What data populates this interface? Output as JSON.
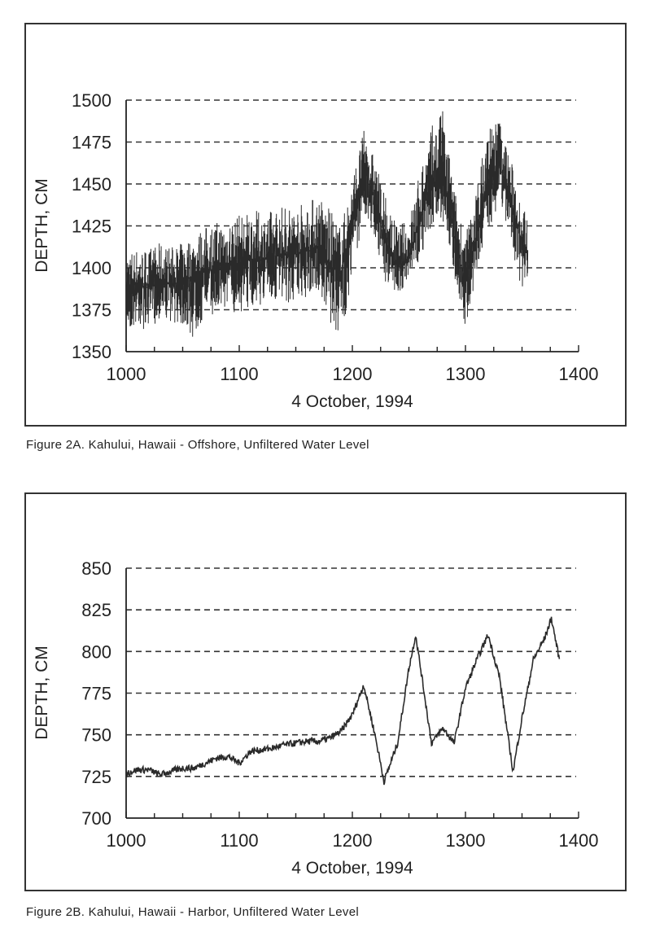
{
  "chart_data": [
    {
      "type": "line",
      "caption": "Figure 2A.   Kahului, Hawaii - Offshore, Unfiltered Water Level",
      "xlabel": "4 October, 1994",
      "ylabel": "DEPTH, CM",
      "xlim": [
        1000,
        1400
      ],
      "ylim": [
        1350,
        1500
      ],
      "xticks": [
        "1000",
        "1100",
        "1200",
        "1300",
        "1400"
      ],
      "yticks": [
        "1350",
        "1375",
        "1400",
        "1425",
        "1450",
        "1475",
        "1500"
      ],
      "grid": "horizontal dashed",
      "color": "#2a2a2a",
      "series": [
        {
          "x": [
            1000,
            1010,
            1020,
            1030,
            1040,
            1050,
            1060,
            1070,
            1080,
            1090,
            1100,
            1110,
            1120,
            1130,
            1140,
            1150,
            1160,
            1170,
            1180,
            1190,
            1200,
            1210,
            1220,
            1230,
            1240,
            1250,
            1260,
            1270,
            1280,
            1290,
            1300,
            1310,
            1320,
            1330,
            1340,
            1350,
            1355
          ],
          "y": [
            1390,
            1390,
            1388,
            1392,
            1390,
            1392,
            1395,
            1398,
            1400,
            1402,
            1403,
            1405,
            1405,
            1407,
            1408,
            1408,
            1410,
            1412,
            1400,
            1398,
            1425,
            1460,
            1440,
            1412,
            1400,
            1405,
            1430,
            1450,
            1455,
            1420,
            1390,
            1420,
            1450,
            1462,
            1440,
            1415,
            1410
          ],
          "min": [
            1360,
            1365,
            1362,
            1370,
            1368,
            1365,
            1355,
            1372,
            1372,
            1375,
            1372,
            1377,
            1378,
            1380,
            1377,
            1380,
            1382,
            1385,
            1365,
            1357,
            1395,
            1430,
            1415,
            1390,
            1385,
            1390,
            1405,
            1425,
            1425,
            1395,
            1365,
            1395,
            1420,
            1440,
            1415,
            1385,
            1395
          ],
          "max": [
            1410,
            1412,
            1412,
            1415,
            1413,
            1415,
            1420,
            1425,
            1428,
            1430,
            1432,
            1435,
            1433,
            1435,
            1438,
            1438,
            1440,
            1445,
            1435,
            1425,
            1455,
            1482,
            1465,
            1440,
            1425,
            1430,
            1460,
            1485,
            1495,
            1448,
            1420,
            1450,
            1488,
            1490,
            1465,
            1440,
            1428
          ]
        }
      ]
    },
    {
      "type": "line",
      "caption": "Figure 2B.   Kahului, Hawaii - Harbor, Unfiltered Water Level",
      "xlabel": "4 October, 1994",
      "ylabel": "DEPTH, CM",
      "xlim": [
        1000,
        1400
      ],
      "ylim": [
        700,
        850
      ],
      "xticks": [
        "1000",
        "1100",
        "1200",
        "1300",
        "1400"
      ],
      "yticks": [
        "700",
        "725",
        "750",
        "775",
        "800",
        "825",
        "850"
      ],
      "grid": "horizontal dashed",
      "color": "#2a2a2a",
      "series": [
        {
          "x": [
            1000,
            1010,
            1020,
            1030,
            1040,
            1050,
            1060,
            1070,
            1080,
            1090,
            1100,
            1110,
            1120,
            1130,
            1140,
            1150,
            1160,
            1170,
            1180,
            1190,
            1200,
            1210,
            1220,
            1228,
            1240,
            1250,
            1256,
            1270,
            1280,
            1290,
            1300,
            1310,
            1320,
            1330,
            1342,
            1350,
            1360,
            1370,
            1376,
            1383
          ],
          "y": [
            727,
            729,
            729,
            726,
            728,
            730,
            730,
            733,
            736,
            737,
            733,
            740,
            741,
            742,
            744,
            745,
            746,
            746,
            748,
            752,
            762,
            780,
            750,
            722,
            745,
            790,
            810,
            745,
            754,
            745,
            778,
            795,
            810,
            785,
            728,
            760,
            795,
            808,
            820,
            795
          ]
        }
      ]
    }
  ]
}
